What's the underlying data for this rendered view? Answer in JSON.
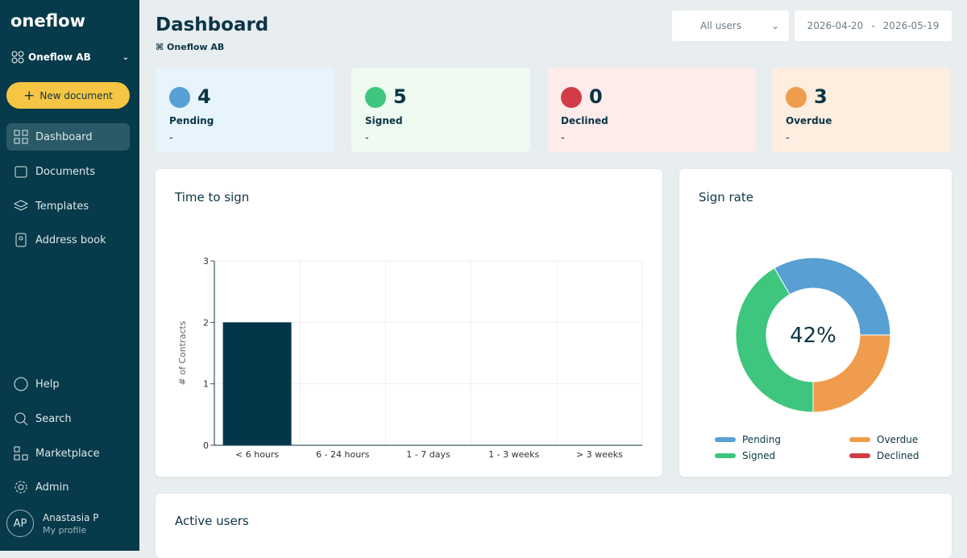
{
  "sidebar": {
    "brand": "oneflow",
    "org": "Oneflow AB",
    "new_button": "New document",
    "nav": [
      "Dashboard",
      "Documents",
      "Templates",
      "Address book"
    ],
    "bottom_nav": [
      "Help",
      "Search",
      "Marketplace",
      "Admin"
    ],
    "user": {
      "initials": "AP",
      "name": "Anastasia P",
      "link": "My profile"
    }
  },
  "header": {
    "title": "Dashboard",
    "org": "Oneflow AB",
    "user_filter": "All users",
    "date_from": "2026-04-20",
    "date_separator": "-",
    "date_to": "2026-05-19"
  },
  "stats": [
    {
      "value": "4",
      "label": "Pending",
      "sub": "-"
    },
    {
      "value": "5",
      "label": "Signed",
      "sub": "-"
    },
    {
      "value": "0",
      "label": "Declined",
      "sub": "-"
    },
    {
      "value": "3",
      "label": "Overdue",
      "sub": "-"
    }
  ],
  "chart_data": [
    {
      "type": "bar",
      "title": "Time to sign",
      "y_label": "# of Contracts",
      "categories": [
        "< 6 hours",
        "6 - 24 hours",
        "1 - 7 days",
        "1 - 3 weeks",
        "> 3 weeks"
      ],
      "values": [
        2,
        0,
        0,
        0,
        0
      ],
      "color": "#04364a",
      "ylim": [
        0,
        3
      ],
      "yticks": [
        0,
        1,
        2,
        3
      ],
      "grid": true
    },
    {
      "type": "pie",
      "title": "Sign rate",
      "center_label": "42%",
      "categories": [
        "Pending",
        "Signed",
        "Overdue",
        "Declined"
      ],
      "values": [
        4,
        5,
        3,
        0
      ],
      "colors": [
        "#589fd3",
        "#3ec57e",
        "#ef9c4d",
        "#d23c46"
      ]
    }
  ],
  "active_users": {
    "title": "Active users"
  }
}
